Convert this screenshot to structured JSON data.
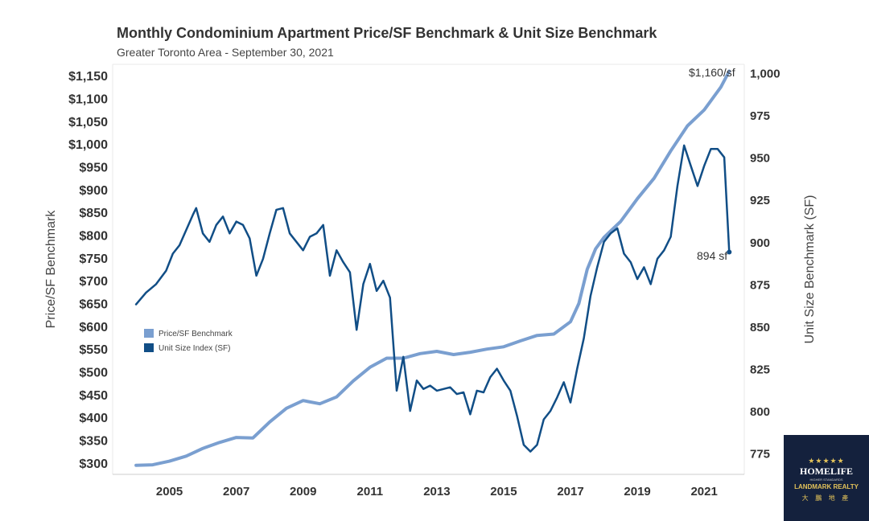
{
  "chart_data": {
    "type": "line",
    "title": "Monthly Condominium Apartment Price/SF Benchmark & Unit Size Benchmark",
    "subtitle": "Greater Toronto Area - September 30, 2021",
    "ylabel": "Price/SF Benchmark",
    "y2label": "Unit Size Benchmark (SF)",
    "ylim": [
      275,
      1175
    ],
    "y2lim": [
      762.5,
      1005
    ],
    "xlim": [
      2003.3,
      2022.2
    ],
    "yticks": [
      "$300",
      "$350",
      "$400",
      "$450",
      "$500",
      "$550",
      "$600",
      "$650",
      "$700",
      "$750",
      "$800",
      "$850",
      "$900",
      "$950",
      "$1,000",
      "$1,050",
      "$1,100",
      "$1,150"
    ],
    "ytick_values": [
      300,
      350,
      400,
      450,
      500,
      550,
      600,
      650,
      700,
      750,
      800,
      850,
      900,
      950,
      1000,
      1050,
      1100,
      1150
    ],
    "y2ticks": [
      "775",
      "800",
      "825",
      "850",
      "875",
      "900",
      "925",
      "950",
      "975",
      "1,000"
    ],
    "y2tick_values": [
      775,
      800,
      825,
      850,
      875,
      900,
      925,
      950,
      975,
      1000
    ],
    "xticks": [
      "2005",
      "2007",
      "2009",
      "2011",
      "2013",
      "2015",
      "2017",
      "2019",
      "2021"
    ],
    "xtick_values": [
      2005,
      2007,
      2009,
      2011,
      2013,
      2015,
      2017,
      2019,
      2021
    ],
    "grid": false,
    "legend_position": "left-middle",
    "series": [
      {
        "name": "Price/SF Benchmark",
        "axis": "left",
        "color": "#7a9fd0",
        "x": [
          2004.0,
          2004.5,
          2005.0,
          2005.5,
          2006.0,
          2006.5,
          2007.0,
          2007.5,
          2008.0,
          2008.5,
          2009.0,
          2009.5,
          2010.0,
          2010.5,
          2011.0,
          2011.5,
          2012.0,
          2012.5,
          2013.0,
          2013.5,
          2014.0,
          2014.5,
          2015.0,
          2015.5,
          2016.0,
          2016.5,
          2017.0,
          2017.25,
          2017.5,
          2017.75,
          2018.0,
          2018.5,
          2019.0,
          2019.5,
          2020.0,
          2020.5,
          2021.0,
          2021.5,
          2021.75
        ],
        "values": [
          295,
          296,
          304,
          315,
          332,
          345,
          356,
          355,
          390,
          420,
          437,
          430,
          445,
          480,
          510,
          530,
          530,
          540,
          545,
          538,
          543,
          550,
          555,
          568,
          580,
          583,
          610,
          650,
          725,
          770,
          795,
          830,
          880,
          925,
          985,
          1040,
          1075,
          1125,
          1160
        ]
      },
      {
        "name": "Unit Size Index (SF)",
        "axis": "right",
        "color": "#114e86",
        "x": [
          2004.0,
          2004.3,
          2004.6,
          2004.9,
          2005.1,
          2005.3,
          2005.5,
          2005.7,
          2005.8,
          2006.0,
          2006.2,
          2006.4,
          2006.6,
          2006.8,
          2007.0,
          2007.2,
          2007.4,
          2007.6,
          2007.8,
          2008.0,
          2008.2,
          2008.4,
          2008.6,
          2008.8,
          2009.0,
          2009.2,
          2009.4,
          2009.6,
          2009.8,
          2010.0,
          2010.2,
          2010.4,
          2010.6,
          2010.8,
          2011.0,
          2011.2,
          2011.4,
          2011.6,
          2011.8,
          2012.0,
          2012.2,
          2012.4,
          2012.6,
          2012.8,
          2013.0,
          2013.2,
          2013.4,
          2013.6,
          2013.8,
          2014.0,
          2014.2,
          2014.4,
          2014.6,
          2014.8,
          2015.0,
          2015.2,
          2015.4,
          2015.6,
          2015.8,
          2016.0,
          2016.2,
          2016.4,
          2016.6,
          2016.8,
          2017.0,
          2017.2,
          2017.4,
          2017.6,
          2017.8,
          2018.0,
          2018.2,
          2018.4,
          2018.6,
          2018.8,
          2019.0,
          2019.2,
          2019.4,
          2019.6,
          2019.8,
          2020.0,
          2020.2,
          2020.4,
          2020.6,
          2020.8,
          2021.0,
          2021.2,
          2021.4,
          2021.6,
          2021.75
        ],
        "values": [
          863,
          870,
          875,
          883,
          893,
          898,
          907,
          916,
          920,
          905,
          900,
          910,
          915,
          905,
          912,
          910,
          902,
          880,
          890,
          905,
          919,
          920,
          905,
          900,
          895,
          903,
          905,
          910,
          880,
          895,
          888,
          882,
          848,
          875,
          887,
          871,
          877,
          867,
          812,
          832,
          800,
          818,
          813,
          815,
          812,
          813,
          814,
          810,
          811,
          798,
          812,
          811,
          820,
          825,
          818,
          812,
          797,
          780,
          776,
          780,
          795,
          800,
          808,
          817,
          805,
          825,
          843,
          868,
          885,
          900,
          905,
          908,
          893,
          888,
          878,
          885,
          875,
          890,
          895,
          903,
          933,
          957,
          945,
          933,
          945,
          955,
          955,
          950,
          894
        ]
      }
    ],
    "annotations": [
      {
        "text": "$1,160/sf",
        "x": 2021.75,
        "y": 1160,
        "axis": "left"
      },
      {
        "text": "894 sf",
        "x": 2021.75,
        "y": 894,
        "axis": "right"
      }
    ]
  },
  "logo": {
    "stars": "★★★★★",
    "main": "HOMELIFE",
    "tagline": "HIGHER STANDARDS",
    "sub": "LANDMARK REALTY",
    "cjk": "大 鵬 地 產"
  }
}
